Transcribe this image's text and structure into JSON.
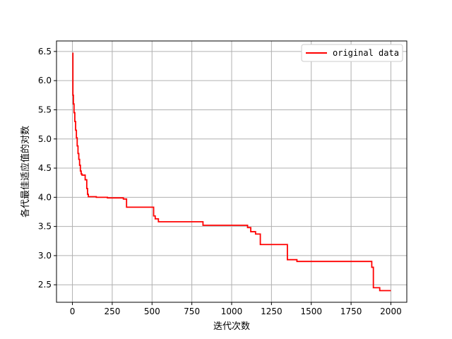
{
  "chart_data": {
    "type": "line",
    "title": "",
    "xlabel": "迭代次数",
    "ylabel": "各代最佳适应值的对数",
    "xlim": [
      -100,
      2100
    ],
    "ylim": [
      2.2,
      6.68
    ],
    "xticks": [
      0,
      250,
      500,
      750,
      1000,
      1250,
      1500,
      1750,
      2000
    ],
    "yticks": [
      2.5,
      3.0,
      3.5,
      4.0,
      4.5,
      5.0,
      5.5,
      6.0,
      6.5
    ],
    "xtick_labels": [
      "0",
      "250",
      "500",
      "750",
      "1000",
      "1250",
      "1500",
      "1750",
      "2000"
    ],
    "ytick_labels": [
      "2.5",
      "3.0",
      "3.5",
      "4.0",
      "4.5",
      "5.0",
      "5.5",
      "6.0",
      "6.5"
    ],
    "grid": true,
    "legend_position": "top-right",
    "series": [
      {
        "name": "original data",
        "color": "#ff0000",
        "step": true,
        "x": [
          0,
          3,
          6,
          10,
          15,
          20,
          25,
          30,
          35,
          40,
          45,
          50,
          55,
          60,
          70,
          80,
          90,
          95,
          100,
          150,
          220,
          320,
          340,
          510,
          520,
          540,
          820,
          1100,
          1120,
          1150,
          1180,
          1350,
          1410,
          1880,
          1890,
          1930,
          2000
        ],
        "y": [
          6.47,
          5.75,
          5.6,
          5.45,
          5.3,
          5.15,
          5.02,
          4.88,
          4.75,
          4.65,
          4.55,
          4.45,
          4.4,
          4.38,
          4.38,
          4.3,
          4.15,
          4.05,
          4.01,
          4.0,
          3.99,
          3.97,
          3.83,
          3.68,
          3.63,
          3.58,
          3.52,
          3.48,
          3.41,
          3.37,
          3.19,
          2.93,
          2.9,
          2.8,
          2.45,
          2.4,
          2.4
        ]
      }
    ]
  }
}
